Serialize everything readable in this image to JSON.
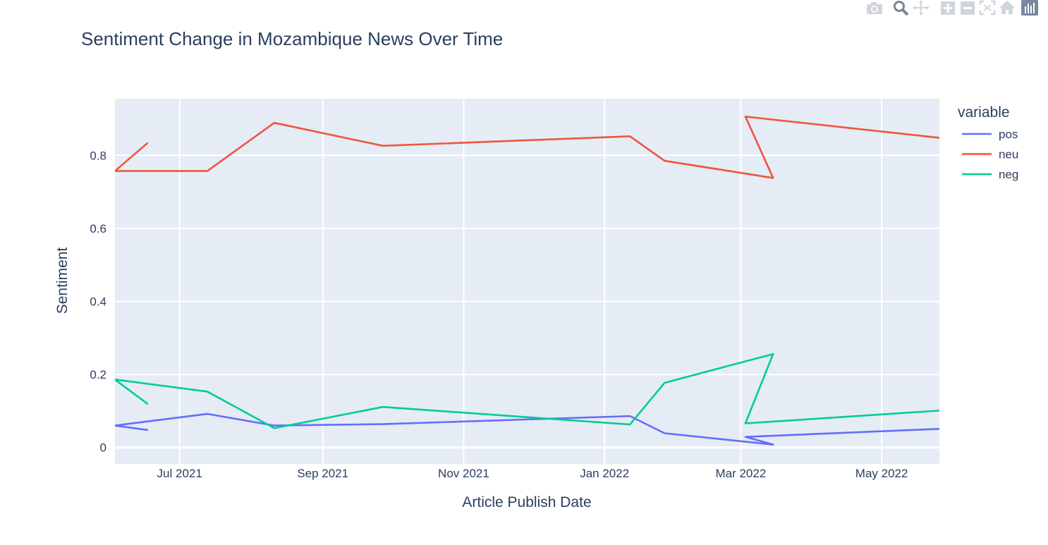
{
  "modebar": {
    "buttons": [
      {
        "name": "camera-icon"
      },
      {
        "name": "zoom-icon"
      },
      {
        "name": "pan-icon"
      },
      {
        "name": "zoom-in-icon"
      },
      {
        "name": "zoom-out-icon"
      },
      {
        "name": "autoscale-icon"
      },
      {
        "name": "reset-axes-icon"
      },
      {
        "name": "plotly-logo-icon"
      }
    ]
  },
  "colors": {
    "plot_bg": "#e5ecf6",
    "grid": "#ffffff",
    "text": "#2a3f5f",
    "pos": "#636efa",
    "neu": "#ef553b",
    "neg": "#00cc96"
  },
  "chart_data": {
    "type": "line",
    "title": "Sentiment Change in Mozambique News Over Time",
    "xlabel": "Article Publish Date",
    "ylabel": "Sentiment",
    "xlim": [
      "2021-06-03",
      "2022-05-26"
    ],
    "ylim": [
      -0.045,
      0.955
    ],
    "x_ticks": [
      {
        "date": "2021-07-01",
        "label": "Jul 2021"
      },
      {
        "date": "2021-09-01",
        "label": "Sep 2021"
      },
      {
        "date": "2021-11-01",
        "label": "Nov 2021"
      },
      {
        "date": "2022-01-01",
        "label": "Jan 2022"
      },
      {
        "date": "2022-03-01",
        "label": "Mar 2022"
      },
      {
        "date": "2022-05-01",
        "label": "May 2022"
      }
    ],
    "y_ticks": [
      {
        "value": 0,
        "label": "0"
      },
      {
        "value": 0.2,
        "label": "0.2"
      },
      {
        "value": 0.4,
        "label": "0.4"
      },
      {
        "value": 0.6,
        "label": "0.6"
      },
      {
        "value": 0.8,
        "label": "0.8"
      }
    ],
    "grid": true,
    "legend": {
      "title": "variable",
      "placement": "right"
    },
    "x": [
      "2021-06-03",
      "2021-06-17",
      "2021-06-03",
      "2021-07-13",
      "2021-08-11",
      "2021-09-27",
      "2022-01-12",
      "2022-01-27",
      "2022-03-15",
      "2022-03-03",
      "2022-05-26"
    ],
    "series": [
      {
        "name": "pos",
        "values": [
          0.06,
          0.048,
          0.06,
          0.092,
          0.06,
          0.064,
          0.086,
          0.039,
          0.008,
          0.029,
          0.051
        ]
      },
      {
        "name": "neu",
        "values": [
          0.757,
          0.833,
          0.757,
          0.757,
          0.889,
          0.826,
          0.852,
          0.785,
          0.738,
          0.906,
          0.848
        ]
      },
      {
        "name": "neg",
        "values": [
          0.186,
          0.12,
          0.186,
          0.153,
          0.053,
          0.111,
          0.063,
          0.177,
          0.256,
          0.066,
          0.101
        ]
      }
    ]
  }
}
